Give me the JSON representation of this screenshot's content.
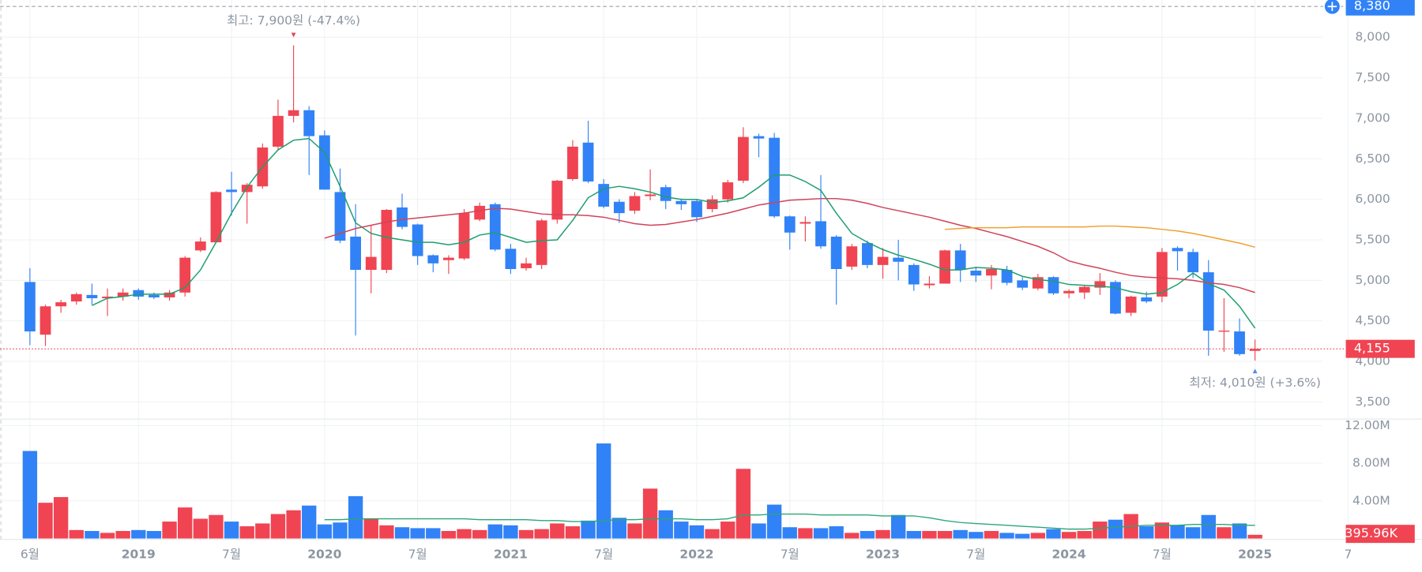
{
  "chart_data": [
    {
      "type": "candlestick",
      "categories": [
        "6월",
        null,
        null,
        null,
        null,
        null,
        null,
        "2019",
        null,
        null,
        null,
        null,
        null,
        "7월",
        null,
        null,
        null,
        null,
        null,
        "2020",
        null,
        null,
        null,
        null,
        null,
        "7월",
        null,
        null,
        null,
        null,
        null,
        "2021",
        null,
        null,
        null,
        null,
        null,
        "7월",
        null,
        null,
        null,
        null,
        null,
        "2022",
        null,
        null,
        null,
        null,
        null,
        "7월",
        null,
        null,
        null,
        null,
        null,
        "2023",
        null,
        null,
        null,
        null,
        null,
        "7월",
        null,
        null,
        null,
        null,
        null,
        "2024",
        null,
        null,
        null,
        null,
        null,
        "7월",
        null,
        null,
        null,
        null,
        null,
        "2025",
        null,
        null,
        null,
        null,
        null,
        "7"
      ],
      "open": [
        4980,
        4330,
        4680,
        4740,
        4820,
        4780,
        4800,
        4880,
        4820,
        4790,
        4850,
        5370,
        5470,
        6120,
        6090,
        6160,
        6650,
        7030,
        7100,
        6790,
        6090,
        5540,
        5130,
        5130,
        5900,
        5690,
        5310,
        5250,
        5270,
        5750,
        5940,
        5390,
        5150,
        5190,
        5750,
        6250,
        6700,
        6190,
        5970,
        5860,
        6040,
        6150,
        5980,
        5980,
        5880,
        6000,
        6230,
        6780,
        6760,
        5790,
        5700,
        5730,
        5540,
        5170,
        5460,
        5190,
        5280,
        5190,
        4940,
        4960,
        5370,
        5120,
        5060,
        5130,
        5000,
        4900,
        5040,
        4840,
        4850,
        4910,
        4980,
        4600,
        4790,
        4800,
        5400,
        5350,
        5100,
        4370,
        4370,
        4130,
        null,
        null,
        null,
        null,
        null,
        null
      ],
      "high": [
        5150,
        4700,
        4760,
        4850,
        4960,
        4900,
        4900,
        4900,
        4850,
        4880,
        5300,
        5530,
        6100,
        6340,
        6200,
        6690,
        7230,
        7900,
        7150,
        6850,
        6380,
        5940,
        5680,
        5880,
        6070,
        5700,
        5320,
        5310,
        5880,
        5960,
        5960,
        5450,
        5280,
        5760,
        6240,
        6730,
        6970,
        6250,
        6000,
        6090,
        6370,
        6180,
        6010,
        6000,
        6050,
        6240,
        6890,
        6810,
        6820,
        5800,
        5790,
        6300,
        5560,
        5450,
        5490,
        5400,
        5500,
        5210,
        5050,
        5380,
        5450,
        5170,
        5190,
        5180,
        5040,
        5080,
        5050,
        4890,
        4940,
        5090,
        5000,
        4810,
        4860,
        5400,
        5420,
        5390,
        5250,
        4780,
        4530,
        4270,
        null,
        null,
        null,
        null,
        null,
        null
      ],
      "low": [
        4200,
        4190,
        4600,
        4700,
        4700,
        4560,
        4750,
        4760,
        4770,
        4750,
        4800,
        5350,
        5460,
        5800,
        5700,
        6130,
        6610,
        6950,
        6300,
        6120,
        5460,
        4320,
        4840,
        5090,
        5630,
        5190,
        5100,
        5080,
        5250,
        5730,
        5360,
        5080,
        5120,
        5140,
        5700,
        6230,
        6200,
        5890,
        5710,
        5820,
        5990,
        5880,
        5870,
        5720,
        5840,
        5960,
        6200,
        6520,
        5770,
        5380,
        5480,
        5390,
        4700,
        5130,
        5150,
        5020,
        5000,
        4870,
        4900,
        4960,
        4980,
        4980,
        4890,
        4940,
        4880,
        4880,
        4820,
        4780,
        4770,
        4820,
        4580,
        4560,
        4720,
        4730,
        5120,
        5030,
        4070,
        4120,
        4070,
        4010,
        null,
        null,
        null,
        null,
        null,
        null
      ],
      "close": [
        4370,
        4680,
        4730,
        4830,
        4780,
        4800,
        4850,
        4800,
        4790,
        4850,
        5280,
        5480,
        6090,
        6090,
        6180,
        6640,
        7030,
        7100,
        6780,
        6120,
        5490,
        5130,
        5290,
        5870,
        5660,
        5300,
        5210,
        5280,
        5830,
        5920,
        5380,
        5140,
        5210,
        5740,
        6230,
        6650,
        6220,
        5910,
        5830,
        6040,
        6060,
        5980,
        5940,
        5780,
        6000,
        6210,
        6770,
        6750,
        5790,
        5590,
        5720,
        5420,
        5140,
        5420,
        5190,
        5290,
        5230,
        4950,
        4960,
        5370,
        5130,
        5060,
        5140,
        4970,
        4910,
        5040,
        4840,
        4870,
        4920,
        4990,
        4590,
        4800,
        4740,
        5350,
        5360,
        5100,
        4380,
        4380,
        4090,
        4155,
        null,
        null,
        null,
        null,
        null,
        null
      ],
      "up_color": "#f04452",
      "down_color": "#3182f6",
      "series": [
        {
          "color": "#1e9e6e",
          "values": [
            null,
            null,
            null,
            null,
            4690,
            4780,
            4800,
            4830,
            4830,
            4830,
            4910,
            5130,
            5470,
            5830,
            6150,
            6400,
            6610,
            6730,
            6750,
            6580,
            6160,
            5710,
            5580,
            5530,
            5500,
            5470,
            5470,
            5440,
            5470,
            5560,
            5590,
            5530,
            5470,
            5490,
            5500,
            5740,
            6020,
            6130,
            6160,
            6130,
            6090,
            6030,
            6000,
            6000,
            5960,
            5980,
            6020,
            6150,
            6300,
            6300,
            6220,
            6110,
            5830,
            5580,
            5470,
            5380,
            5310,
            5260,
            5200,
            5130,
            5130,
            5160,
            5150,
            5130,
            5050,
            5010,
            4990,
            4950,
            4940,
            4930,
            4910,
            4860,
            4830,
            4850,
            4950,
            5090,
            4960,
            4880,
            4680,
            4410,
            null,
            null,
            null,
            null,
            null,
            null
          ]
        },
        {
          "color": "#d0435a",
          "values": [
            null,
            null,
            null,
            null,
            null,
            null,
            null,
            null,
            null,
            null,
            null,
            null,
            null,
            null,
            null,
            null,
            null,
            null,
            null,
            5520,
            5580,
            5640,
            5680,
            5720,
            5750,
            5770,
            5790,
            5810,
            5830,
            5860,
            5890,
            5880,
            5850,
            5820,
            5810,
            5810,
            5800,
            5780,
            5740,
            5700,
            5680,
            5690,
            5720,
            5750,
            5790,
            5830,
            5880,
            5930,
            5960,
            5990,
            6000,
            6010,
            6010,
            5990,
            5950,
            5900,
            5860,
            5820,
            5780,
            5730,
            5680,
            5640,
            5590,
            5540,
            5480,
            5420,
            5340,
            5240,
            5190,
            5150,
            5100,
            5060,
            5040,
            5030,
            5020,
            5000,
            4970,
            4950,
            4910,
            4850,
            null,
            null,
            null,
            null,
            null,
            null
          ]
        },
        {
          "color": "#f0a030",
          "values": [
            null,
            null,
            null,
            null,
            null,
            null,
            null,
            null,
            null,
            null,
            null,
            null,
            null,
            null,
            null,
            null,
            null,
            null,
            null,
            null,
            null,
            null,
            null,
            null,
            null,
            null,
            null,
            null,
            null,
            null,
            null,
            null,
            null,
            null,
            null,
            null,
            null,
            null,
            null,
            null,
            null,
            null,
            null,
            null,
            null,
            null,
            null,
            null,
            null,
            null,
            null,
            null,
            null,
            null,
            null,
            null,
            null,
            null,
            null,
            5630,
            5640,
            5650,
            5650,
            5650,
            5660,
            5660,
            5660,
            5660,
            5660,
            5670,
            5670,
            5660,
            5650,
            5630,
            5610,
            5580,
            5540,
            5500,
            5460,
            5410,
            null,
            null,
            null,
            null,
            null,
            null
          ]
        }
      ],
      "ylim": [
        3300,
        8460
      ],
      "yticks": [
        {
          "value": 3500,
          "label": "3,500"
        },
        {
          "value": 4000,
          "label": "4,000"
        },
        {
          "value": 4500,
          "label": "4,500"
        },
        {
          "value": 5000,
          "label": "5,000"
        },
        {
          "value": 5500,
          "label": "5,500"
        },
        {
          "value": 6000,
          "label": "6,000"
        },
        {
          "value": 6500,
          "label": "6,500"
        },
        {
          "value": 7000,
          "label": "7,000"
        },
        {
          "value": 7500,
          "label": "7,500"
        },
        {
          "value": 8000,
          "label": "8,000"
        }
      ],
      "grid": true,
      "high_annotation": {
        "value": 7900,
        "label": "최고: 7,900원 (-47.4%)"
      },
      "low_annotation": {
        "value": 4010,
        "label": "최저: 4,010원 (+3.6%)"
      },
      "last_price": {
        "value": 4155,
        "label": "4,155"
      },
      "crosshair_price": {
        "value": 8380,
        "label": "8,380"
      }
    },
    {
      "type": "bar",
      "values": [
        9.3,
        3.8,
        4.4,
        0.9,
        0.8,
        0.6,
        0.8,
        0.9,
        0.8,
        1.8,
        3.3,
        2.1,
        2.5,
        1.8,
        1.3,
        1.6,
        2.6,
        3.0,
        3.5,
        1.5,
        1.7,
        4.5,
        2.1,
        1.4,
        1.2,
        1.1,
        1.1,
        0.8,
        1.0,
        0.9,
        1.5,
        1.4,
        0.9,
        1.0,
        1.6,
        1.3,
        1.9,
        10.1,
        2.2,
        1.6,
        5.3,
        3.0,
        1.8,
        1.4,
        1.0,
        1.8,
        7.4,
        1.6,
        3.6,
        1.2,
        1.1,
        1.1,
        1.3,
        0.6,
        0.8,
        0.9,
        2.5,
        0.8,
        0.8,
        0.8,
        0.9,
        0.7,
        0.8,
        0.6,
        0.5,
        0.6,
        1.0,
        0.7,
        0.8,
        1.8,
        2.0,
        2.6,
        1.3,
        1.7,
        1.4,
        1.2,
        2.5,
        1.2,
        1.6,
        0.39596,
        null,
        null,
        null,
        null,
        null,
        null
      ],
      "series": [
        {
          "color": "#2aa776",
          "values": [
            null,
            null,
            null,
            null,
            null,
            null,
            null,
            null,
            null,
            null,
            null,
            null,
            null,
            null,
            null,
            null,
            null,
            null,
            null,
            2.0,
            2.0,
            2.1,
            2.1,
            2.1,
            2.1,
            2.1,
            2.1,
            2.1,
            2.1,
            2.0,
            2.0,
            2.0,
            2.0,
            1.9,
            1.9,
            1.8,
            1.8,
            1.9,
            2.0,
            2.0,
            2.1,
            2.1,
            2.1,
            2.0,
            2.0,
            2.1,
            2.5,
            2.5,
            2.6,
            2.6,
            2.6,
            2.5,
            2.5,
            2.5,
            2.5,
            2.4,
            2.4,
            2.4,
            2.2,
            1.9,
            1.7,
            1.6,
            1.5,
            1.4,
            1.3,
            1.2,
            1.1,
            1.0,
            1.0,
            1.1,
            1.2,
            1.3,
            1.4,
            1.4,
            1.4,
            1.5,
            1.5,
            1.5,
            1.4,
            1.4,
            null,
            null,
            null,
            null,
            null,
            null
          ]
        }
      ],
      "ylim": [
        0,
        12.5
      ],
      "yticks": [
        {
          "value": 4,
          "label": "4.00M"
        },
        {
          "value": 8,
          "label": "8.00M"
        },
        {
          "value": 12,
          "label": "12.00M"
        }
      ],
      "grid": true,
      "last_volume": {
        "value": 0.39596,
        "label": "395.96K"
      }
    }
  ]
}
